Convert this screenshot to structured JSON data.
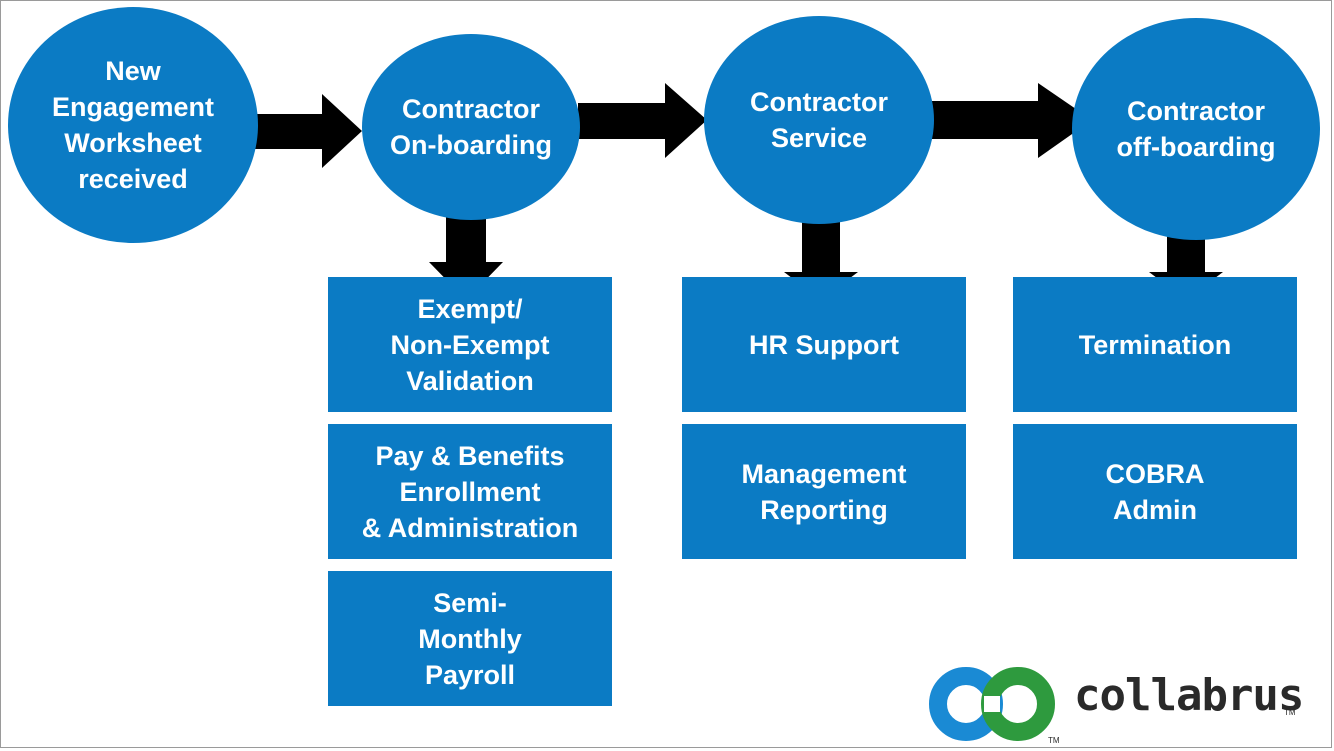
{
  "stages": [
    {
      "label": "New\nEngagement\nWorksheet\nreceived"
    },
    {
      "label": "Contractor\nOn-boarding"
    },
    {
      "label": "Contractor\nService"
    },
    {
      "label": "Contractor\noff-boarding"
    }
  ],
  "tasks": {
    "onboarding": [
      {
        "label": "Exempt/\nNon-Exempt\nValidation"
      },
      {
        "label": "Pay & Benefits\nEnrollment\n& Administration"
      },
      {
        "label": "Semi-\nMonthly\nPayroll"
      }
    ],
    "service": [
      {
        "label": "HR Support"
      },
      {
        "label": "Management\nReporting"
      }
    ],
    "offboarding": [
      {
        "label": "Termination"
      },
      {
        "label": "COBRA\nAdmin"
      }
    ]
  },
  "logo": {
    "name": "collabrus",
    "tm": "TM"
  },
  "colors": {
    "primary": "#0b7bc4",
    "arrow": "#000000",
    "logo_blue": "#1a8ad4",
    "logo_green": "#2e9a3e"
  }
}
